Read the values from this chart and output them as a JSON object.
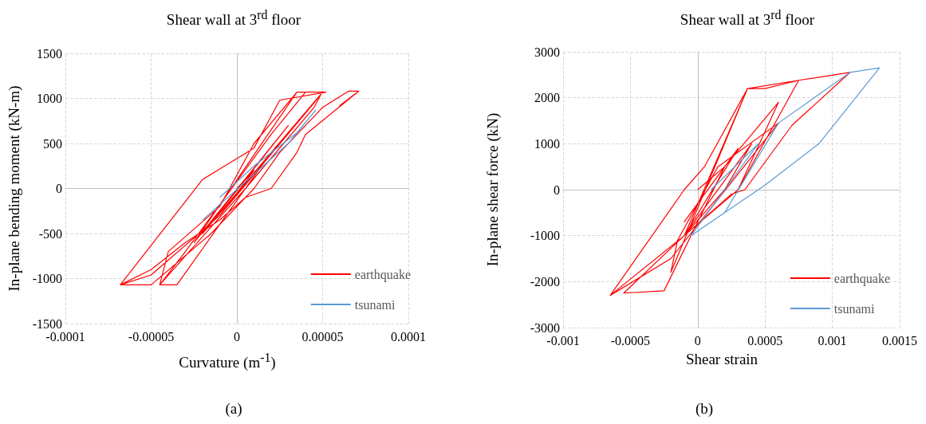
{
  "chart_data": [
    {
      "type": "line",
      "title": "Shear wall at 3$^{rd}$ floor",
      "xlabel": "Curvature (m$^{-1}$)",
      "ylabel": "In-plane bending moment (kN-m)",
      "annotations": [
        "(a)"
      ],
      "xlim": [
        -0.0001,
        0.0001
      ],
      "xticks": [
        -0.0001,
        {
          "value": -5e-05,
          "label": "-0.00005"
        },
        0,
        {
          "value": 5e-05,
          "label": "0.00005"
        },
        0.0001
      ],
      "ylim": [
        -1500,
        1500
      ],
      "yticks": [
        -1500,
        -1000,
        -500,
        0,
        500,
        1000,
        1500
      ],
      "grid": true,
      "legend": "bottom right",
      "marker": "none",
      "line_style": "solid",
      "series": [
        {
          "name": "earthquake",
          "color": "#ff0000",
          "x": [
            0,
            1e-05,
            -1e-05,
            2e-05,
            -2e-05,
            3e-05,
            -2.5e-05,
            3.5e-05,
            4e-05,
            2e-05,
            -3e-05,
            -4.5e-05,
            -3.5e-05,
            -1e-05,
            2e-05,
            5e-05,
            4.5e-05,
            -1e-05,
            -5e-05,
            -6.8e-05,
            -5e-05,
            -1.5e-05,
            1e-05,
            2.5e-05,
            5e-05,
            6.5e-05,
            7.1e-05,
            6e-05,
            7.1e-05,
            4e-05,
            3.5e-05,
            2e-05,
            5e-06,
            -1e-05,
            -3e-05,
            -5e-05,
            -6.8e-05,
            -2e-05,
            1e-05,
            2.5e-05,
            5.2e-05,
            3.5e-05,
            1e-05,
            -1e-05,
            -4e-05,
            -4.5e-05,
            5e-06,
            4.5e-05,
            5e-05
          ],
          "values": [
            0,
            200,
            -300,
            400,
            -500,
            700,
            -600,
            1070,
            1070,
            600,
            -700,
            -1070,
            -1070,
            -400,
            400,
            1070,
            950,
            -300,
            -960,
            -1070,
            -1070,
            -500,
            0,
            400,
            900,
            1080,
            1080,
            920,
            1080,
            600,
            400,
            0,
            -100,
            -350,
            -600,
            -900,
            -1070,
            100,
            450,
            980,
            1070,
            1070,
            500,
            -200,
            -700,
            -1070,
            0,
            900,
            1080
          ]
        },
        {
          "name": "tsunami",
          "color": "#5b9bd5",
          "x": [
            -2e-05,
            3e-05,
            4.6e-05,
            3.5e-05,
            1e-05,
            -1e-05
          ],
          "values": [
            -350,
            500,
            870,
            620,
            250,
            -100
          ]
        }
      ]
    },
    {
      "type": "line",
      "title": "Shear wall at 3$^{rd}$ floor",
      "xlabel": "Shear strain",
      "ylabel": "In-plane shear force (kN)",
      "annotations": [
        "(b)"
      ],
      "xlim": [
        -0.001,
        0.0015
      ],
      "xticks": [
        -0.001,
        -0.0005,
        0,
        0.0005,
        0.001,
        0.0015
      ],
      "ylim": [
        -3000,
        3000
      ],
      "yticks": [
        -3000,
        -2000,
        -1000,
        0,
        1000,
        2000,
        3000
      ],
      "grid": true,
      "legend": "bottom right",
      "marker": "none",
      "line_style": "solid",
      "series": [
        {
          "name": "earthquake",
          "color": "#ff0000",
          "x": [
            0,
            0.0002,
            -0.0001,
            0.0003,
            -0.0001,
            0.0002,
            0.0004,
            -0.0001,
            0.00037,
            0.0005,
            0.00075,
            0.0003,
            -0.0001,
            -0.00055,
            -0.00025,
            0.0002,
            0.0006,
            0.0003,
            -0.0001,
            -0.00065,
            -0.0002,
            0.0006,
            0.00015,
            -0.00015,
            -0.0002,
            0.00037,
            0.00075,
            0.00113,
            0.0007,
            0.00035,
            0.00025,
            -0.0001,
            -0.00065,
            -0.0001,
            5e-05,
            0.00037
          ],
          "values": [
            0,
            500,
            -700,
            900,
            -1000,
            0,
            1000,
            -1000,
            2200,
            2200,
            2380,
            0,
            -1000,
            -2250,
            -2200,
            500,
            1900,
            0,
            -1000,
            -2300,
            -1500,
            1450,
            500,
            -1100,
            -1800,
            2200,
            2380,
            2550,
            1400,
            0,
            -100,
            -1000,
            -2300,
            0,
            500,
            2200
          ]
        },
        {
          "name": "tsunami",
          "color": "#5b9bd5",
          "x": [
            0.0001,
            0.00045,
            -5e-05,
            0.0002,
            0.0006,
            0.00113,
            0.00135,
            0.0012,
            0.0009,
            0.0005,
            0.00045,
            0.0003,
            -5e-05
          ],
          "values": [
            0,
            1000,
            -1000,
            -500,
            1450,
            2550,
            2650,
            2100,
            1000,
            100,
            0,
            -300,
            -1000
          ]
        }
      ]
    }
  ]
}
